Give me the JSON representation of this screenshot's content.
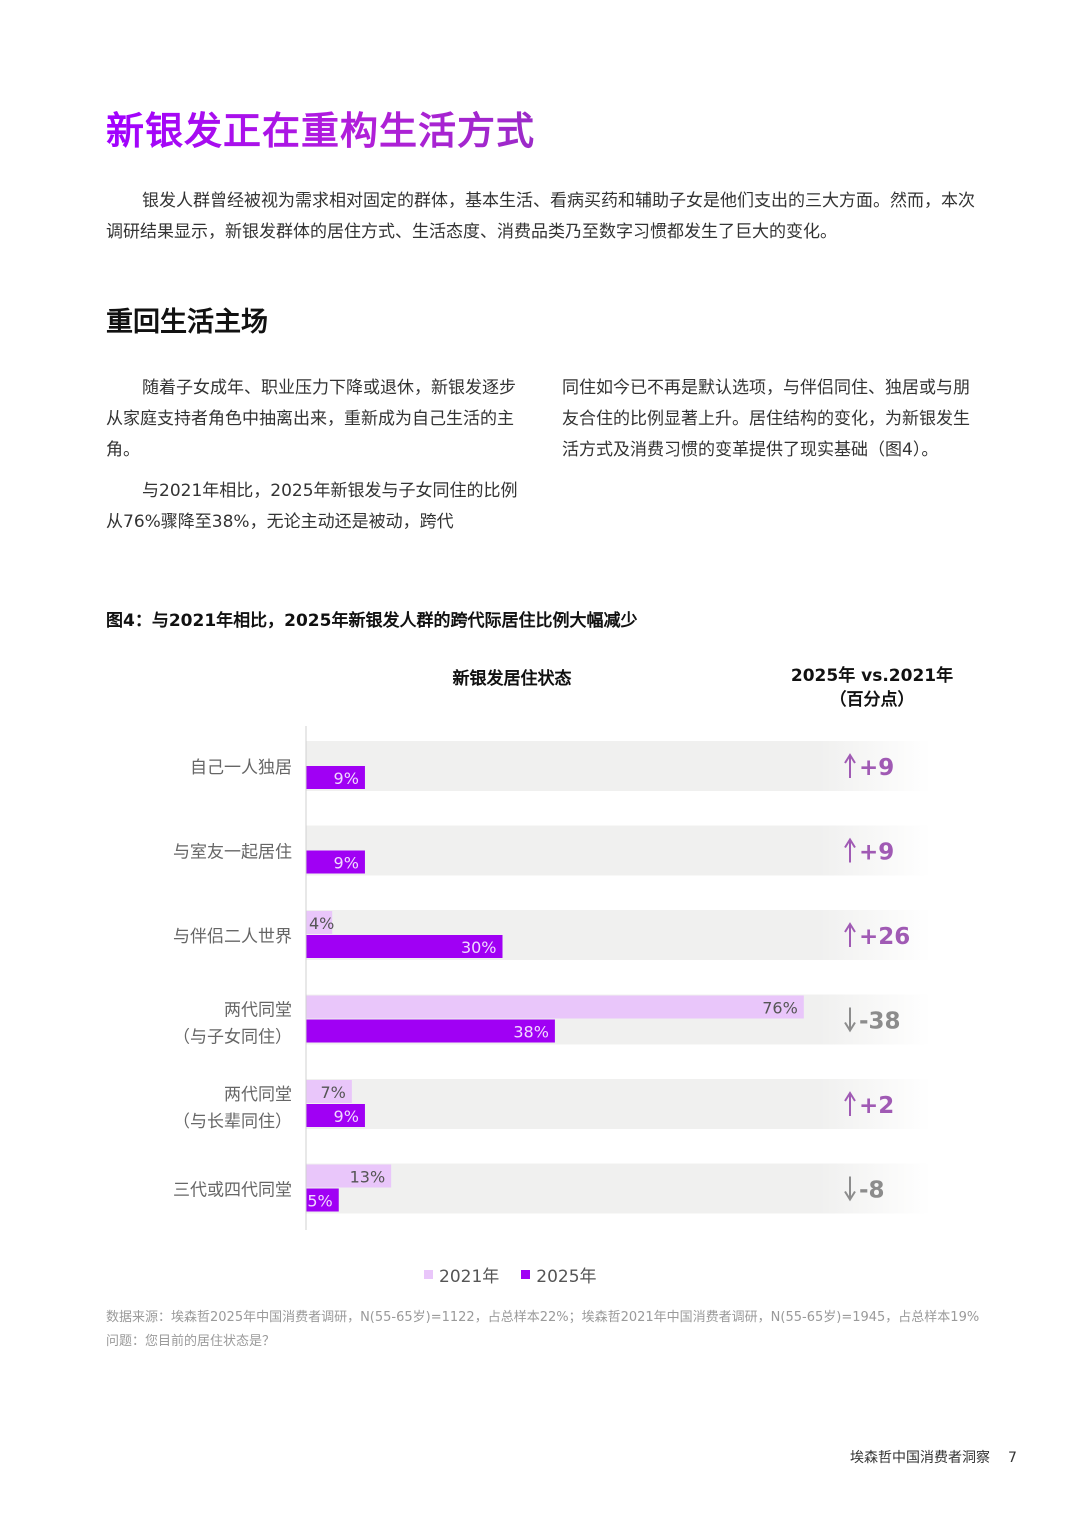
{
  "title": "新银发正在重构生活方式",
  "intro": "银发人群曾经被视为需求相对固定的群体，基本生活、看病买药和辅助子女是他们支出的三大方面。然而，本次调研结果显示，新银发群体的居住方式、生活态度、消费品类乃至数字习惯都发生了巨大的变化。",
  "section_title": "重回生活主场",
  "left_paragraphs": [
    "随着子女成年、职业压力下降或退休，新银发逐步从家庭支持者角色中抽离出来，重新成为自己生活的主角。",
    "与2021年相比，2025年新银发与子女同住的比例从76%骤降至38%，无论主动还是被动，跨代"
  ],
  "right_paragraph": "同住如今已不再是默认选项，与伴侣同住、独居或与朋友合住的比例显著上升。居住结构的变化，为新银发生活方式及消费习惯的变革提供了现实基础（图4）。",
  "figure_title": "图4：与2021年相比，2025年新银发人群的跨代际居住比例大幅减少",
  "column_header_status": "新银发居住状态",
  "column_header_change_1": "2025年 vs.2021年",
  "column_header_change_2": "（百分点）",
  "colors": {
    "accent": "#a100ff",
    "bar_2021": "#e9c6fa",
    "bar_2025": "#a000f4",
    "row_band": "#f0f0ef",
    "up": "#a05ab4",
    "down": "#8c8c8c"
  },
  "chart_data": {
    "type": "bar",
    "orientation": "horizontal",
    "xlim": [
      0,
      100
    ],
    "categories": [
      [
        "自己一人独居"
      ],
      [
        "与室友一起居住"
      ],
      [
        "与伴侣二人世界"
      ],
      [
        "两代同堂",
        "（与子女同住）"
      ],
      [
        "两代同堂",
        "（与长辈同住）"
      ],
      [
        "三代或四代同堂"
      ]
    ],
    "series": [
      {
        "name": "2021年",
        "values": [
          null,
          null,
          4,
          76,
          7,
          13
        ],
        "labels": [
          "",
          "",
          "4%",
          "76%",
          "7%",
          "13%"
        ]
      },
      {
        "name": "2025年",
        "values": [
          9,
          9,
          30,
          38,
          9,
          5
        ],
        "labels": [
          "9%",
          "9%",
          "30%",
          "38%",
          "9%",
          "5%"
        ]
      }
    ],
    "changes": [
      {
        "text": "+9",
        "direction": "up"
      },
      {
        "text": "+9",
        "direction": "up"
      },
      {
        "text": "+26",
        "direction": "up"
      },
      {
        "text": "-38",
        "direction": "down"
      },
      {
        "text": "+2",
        "direction": "up"
      },
      {
        "text": "-8",
        "direction": "down"
      }
    ],
    "legend": [
      "2021年",
      "2025年"
    ],
    "legend_position": "bottom"
  },
  "source_line": "数据来源：埃森哲2025年中国消费者调研，N(55-65岁)=1122，占总样本22%；埃森哲2021年中国消费者调研，N(55-65岁)=1945，占总样本19%",
  "question_line": "问题：您目前的居住状态是？",
  "footer_text": "埃森哲中国消费者洞察",
  "page_number": "7"
}
